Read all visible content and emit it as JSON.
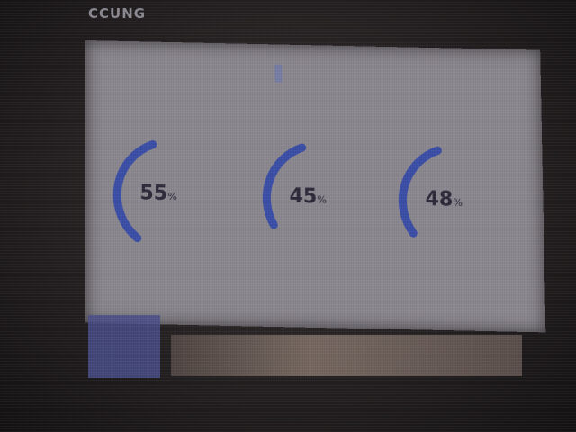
{
  "device": {
    "bezel_label": "CCUNG"
  },
  "gauges": [
    {
      "value": "55",
      "unit": "%",
      "level": 0.55
    },
    {
      "value": "45",
      "unit": "%",
      "level": 0.45
    },
    {
      "value": "48",
      "unit": "%",
      "level": 0.48
    }
  ],
  "colors": {
    "gauge_arc": "#3b4fa8",
    "screen_bg": "#8c8890",
    "text": "#2e2a3a"
  }
}
